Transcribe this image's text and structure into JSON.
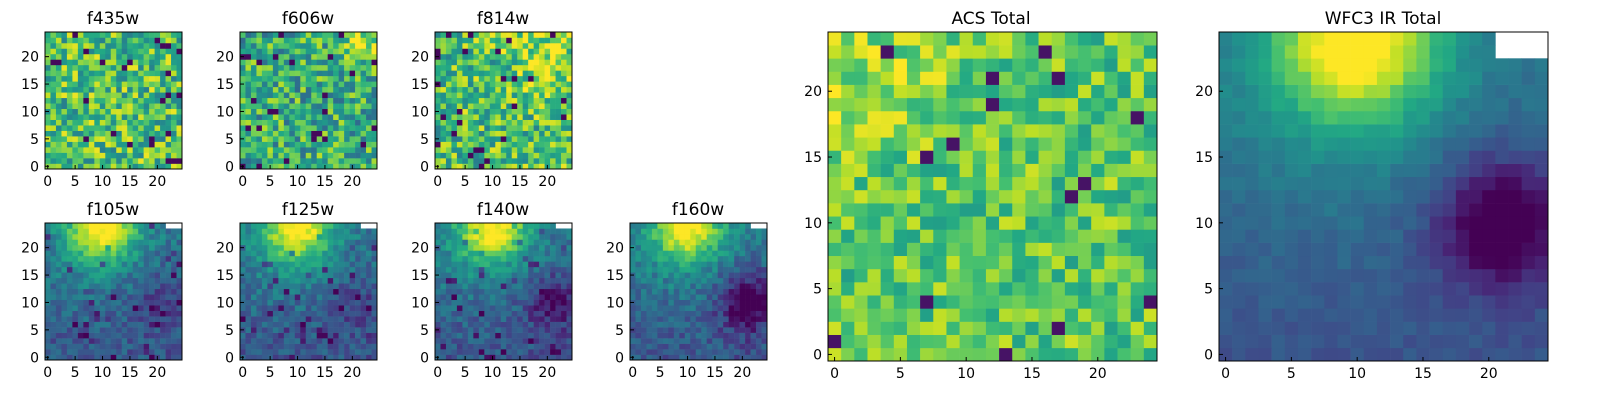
{
  "figure": {
    "panels": [
      {
        "title": "f435w",
        "xticks": [
          "0",
          "5",
          "10",
          "15",
          "20"
        ],
        "yticks": [
          "0",
          "5",
          "10",
          "15",
          "20"
        ]
      },
      {
        "title": "f606w",
        "xticks": [
          "0",
          "5",
          "10",
          "15",
          "20"
        ],
        "yticks": [
          "0",
          "5",
          "10",
          "15",
          "20"
        ]
      },
      {
        "title": "f814w",
        "xticks": [
          "0",
          "5",
          "10",
          "15",
          "20"
        ],
        "yticks": [
          "0",
          "5",
          "10",
          "15",
          "20"
        ]
      },
      {
        "title": "f105w",
        "xticks": [
          "0",
          "5",
          "10",
          "15",
          "20"
        ],
        "yticks": [
          "0",
          "5",
          "10",
          "15",
          "20"
        ]
      },
      {
        "title": "f125w",
        "xticks": [
          "0",
          "5",
          "10",
          "15",
          "20"
        ],
        "yticks": [
          "0",
          "5",
          "10",
          "15",
          "20"
        ]
      },
      {
        "title": "f140w",
        "xticks": [
          "0",
          "5",
          "10",
          "15",
          "20"
        ],
        "yticks": [
          "0",
          "5",
          "10",
          "15",
          "20"
        ]
      },
      {
        "title": "f160w",
        "xticks": [
          "0",
          "5",
          "10",
          "15",
          "20"
        ],
        "yticks": [
          "0",
          "5",
          "10",
          "15",
          "20"
        ]
      },
      {
        "title": "ACS Total",
        "xticks": [
          "0",
          "5",
          "10",
          "15",
          "20"
        ],
        "yticks": [
          "0",
          "5",
          "10",
          "15",
          "20"
        ]
      },
      {
        "title": "WFC3 IR Total",
        "xticks": [
          "0",
          "5",
          "10",
          "15",
          "20"
        ],
        "yticks": [
          "0",
          "5",
          "10",
          "15",
          "20"
        ]
      }
    ]
  },
  "chart_data": [
    {
      "type": "heatmap",
      "title": "f435w",
      "colormap": "viridis",
      "grid": false,
      "xlim": [
        -0.5,
        24.5
      ],
      "ylim": [
        -0.5,
        24.5
      ],
      "size": [
        25,
        25
      ]
    },
    {
      "type": "heatmap",
      "title": "f606w",
      "colormap": "viridis",
      "grid": false,
      "xlim": [
        -0.5,
        24.5
      ],
      "ylim": [
        -0.5,
        24.5
      ],
      "size": [
        25,
        25
      ]
    },
    {
      "type": "heatmap",
      "title": "f814w",
      "colormap": "viridis",
      "grid": false,
      "xlim": [
        -0.5,
        24.5
      ],
      "ylim": [
        -0.5,
        24.5
      ],
      "size": [
        25,
        25
      ]
    },
    {
      "type": "heatmap",
      "title": "f105w",
      "colormap": "viridis",
      "grid": false,
      "xlim": [
        -0.5,
        24.5
      ],
      "ylim": [
        -0.5,
        24.5
      ],
      "size": [
        25,
        25
      ]
    },
    {
      "type": "heatmap",
      "title": "f125w",
      "colormap": "viridis",
      "grid": false,
      "xlim": [
        -0.5,
        24.5
      ],
      "ylim": [
        -0.5,
        24.5
      ],
      "size": [
        25,
        25
      ]
    },
    {
      "type": "heatmap",
      "title": "f140w",
      "colormap": "viridis",
      "grid": false,
      "xlim": [
        -0.5,
        24.5
      ],
      "ylim": [
        -0.5,
        24.5
      ],
      "size": [
        25,
        25
      ]
    },
    {
      "type": "heatmap",
      "title": "f160w",
      "colormap": "viridis",
      "grid": false,
      "xlim": [
        -0.5,
        24.5
      ],
      "ylim": [
        -0.5,
        24.5
      ],
      "size": [
        25,
        25
      ]
    },
    {
      "type": "heatmap",
      "title": "ACS Total",
      "colormap": "viridis",
      "grid": false,
      "xlim": [
        -0.5,
        24.5
      ],
      "ylim": [
        -0.5,
        24.5
      ],
      "size": [
        25,
        25
      ]
    },
    {
      "type": "heatmap",
      "title": "WFC3 IR Total",
      "colormap": "viridis",
      "grid": false,
      "xlim": [
        -0.5,
        24.5
      ],
      "ylim": [
        -0.5,
        24.5
      ],
      "size": [
        25,
        25
      ]
    }
  ]
}
